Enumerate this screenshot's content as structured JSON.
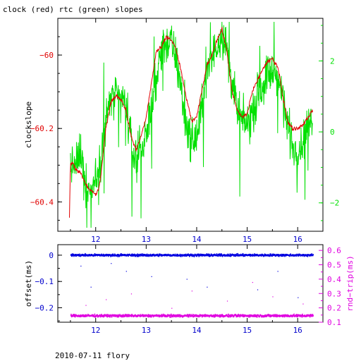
{
  "title": "clock (red) rtc (green) slopes",
  "footer": "2010-07-11 flory",
  "colors": {
    "clock": "#e00000",
    "rtc": "#00e000",
    "offset": "#0000e0",
    "rndtrip": "#e000e0",
    "axis_bottom": "#0000cc",
    "frame": "#000000"
  },
  "chart_data": [
    {
      "type": "line",
      "title": "clock (red) rtc (green) slopes",
      "ylabel": "clockslope",
      "y2label": "",
      "xlim": [
        11.25,
        16.5
      ],
      "ylim": [
        -60.48,
        -59.9
      ],
      "y2lim": [
        -2.8,
        3.2
      ],
      "xticks": [
        12,
        13,
        14,
        15,
        16
      ],
      "xtick_labels": [
        "12",
        "13",
        "14",
        "15",
        "16"
      ],
      "yticks": [
        -60.4,
        -60.2,
        -60
      ],
      "ytick_labels": [
        "−60.4",
        "−60.2",
        "−60"
      ],
      "y2ticks": [
        -2,
        0,
        2
      ],
      "y2tick_labels": [
        "−2",
        "0",
        "2"
      ],
      "series": [
        {
          "name": "clock",
          "axis": "left",
          "x": [
            11.48,
            11.5,
            11.55,
            11.6,
            11.7,
            11.8,
            11.9,
            12.0,
            12.05,
            12.1,
            12.2,
            12.3,
            12.4,
            12.5,
            12.6,
            12.7,
            12.8,
            12.9,
            13.0,
            13.1,
            13.2,
            13.3,
            13.4,
            13.5,
            13.55,
            13.6,
            13.7,
            13.8,
            13.9,
            14.0,
            14.1,
            14.2,
            14.3,
            14.4,
            14.5,
            14.55,
            14.6,
            14.7,
            14.8,
            14.9,
            15.0,
            15.1,
            15.2,
            15.3,
            15.4,
            15.5,
            15.6,
            15.65,
            15.7,
            15.8,
            15.9,
            16.0,
            16.1,
            16.2,
            16.3
          ],
          "values": [
            -60.44,
            -60.3,
            -60.29,
            -60.31,
            -60.32,
            -60.35,
            -60.37,
            -60.38,
            -60.37,
            -60.33,
            -60.2,
            -60.13,
            -60.11,
            -60.12,
            -60.15,
            -60.22,
            -60.26,
            -60.22,
            -60.17,
            -60.08,
            -59.99,
            -59.98,
            -59.95,
            -59.96,
            -59.97,
            -59.99,
            -60.05,
            -60.12,
            -60.18,
            -60.17,
            -60.1,
            -60.03,
            -60.0,
            -59.96,
            -59.93,
            -59.96,
            -59.99,
            -60.1,
            -60.15,
            -60.17,
            -60.16,
            -60.1,
            -60.07,
            -60.04,
            -60.02,
            -60.01,
            -60.03,
            -60.06,
            -60.11,
            -60.18,
            -60.2,
            -60.2,
            -60.19,
            -60.17,
            -60.15
          ]
        },
        {
          "name": "rtc",
          "axis": "right",
          "x": [
            11.5,
            11.6,
            11.7,
            11.8,
            11.9,
            12.0,
            12.1,
            12.2,
            12.3,
            12.4,
            12.5,
            12.6,
            12.7,
            12.8,
            12.9,
            13.0,
            13.1,
            13.2,
            13.3,
            13.4,
            13.5,
            13.6,
            13.7,
            13.8,
            13.9,
            14.0,
            14.1,
            14.2,
            14.3,
            14.4,
            14.5,
            14.6,
            14.7,
            14.8,
            14.9,
            15.0,
            15.1,
            15.2,
            15.3,
            15.4,
            15.5,
            15.6,
            15.7,
            15.8,
            15.9,
            16.0,
            16.1,
            16.2,
            16.3
          ],
          "values": [
            -0.9,
            -1.0,
            -0.5,
            -1.5,
            -1.7,
            -1.3,
            -0.7,
            0.3,
            1.0,
            0.9,
            1.0,
            0.7,
            -0.3,
            -0.8,
            -0.5,
            -0.1,
            0.6,
            1.5,
            2.4,
            2.5,
            2.5,
            2.0,
            1.1,
            0.2,
            -0.3,
            -0.2,
            0.7,
            1.6,
            2.0,
            2.5,
            2.8,
            2.3,
            1.4,
            0.6,
            0.3,
            0.2,
            0.5,
            1.0,
            1.3,
            1.6,
            1.7,
            1.5,
            1.0,
            0.2,
            -0.4,
            -0.5,
            -0.3,
            0.1,
            0.5
          ]
        }
      ]
    },
    {
      "type": "scatter",
      "ylabel": "offset(ms)",
      "y2label": "rnd−trip(ms)",
      "xlim": [
        11.25,
        16.5
      ],
      "ylim": [
        -0.255,
        0.04
      ],
      "y2lim": [
        0.1,
        0.64
      ],
      "xticks": [
        12,
        13,
        14,
        15,
        16
      ],
      "xtick_labels": [
        "12",
        "13",
        "14",
        "15",
        "16"
      ],
      "yticks": [
        0,
        -0.1,
        -0.2
      ],
      "ytick_labels": [
        "0",
        "−0.1",
        "−0.2"
      ],
      "y2ticks": [
        0.1,
        0.2,
        0.3,
        0.4,
        0.5,
        0.6
      ],
      "y2tick_labels": [
        "0.1",
        "0.2",
        "0.3",
        "0.4",
        "0.5",
        "0.6"
      ],
      "series": [
        {
          "name": "offset",
          "axis": "left",
          "x": [
            11.5,
            16.3
          ],
          "values": [
            0.0,
            0.0
          ],
          "outliers": [
            [
              11.7,
              -0.04
            ],
            [
              11.9,
              -0.12
            ],
            [
              12.3,
              -0.03
            ],
            [
              12.6,
              -0.06
            ],
            [
              13.1,
              -0.08
            ],
            [
              13.8,
              -0.09
            ],
            [
              14.2,
              -0.12
            ],
            [
              15.2,
              -0.13
            ],
            [
              15.6,
              -0.06
            ],
            [
              16.0,
              -0.16
            ]
          ]
        },
        {
          "name": "rnd-trip",
          "axis": "right",
          "x": [
            11.5,
            16.3
          ],
          "values": [
            0.145,
            0.145
          ],
          "outliers": [
            [
              11.8,
              0.22
            ],
            [
              12.2,
              0.26
            ],
            [
              12.7,
              0.3
            ],
            [
              13.5,
              0.2
            ],
            [
              13.9,
              0.32
            ],
            [
              14.6,
              0.25
            ],
            [
              15.1,
              0.38
            ],
            [
              15.5,
              0.28
            ],
            [
              16.1,
              0.23
            ]
          ]
        }
      ]
    }
  ]
}
